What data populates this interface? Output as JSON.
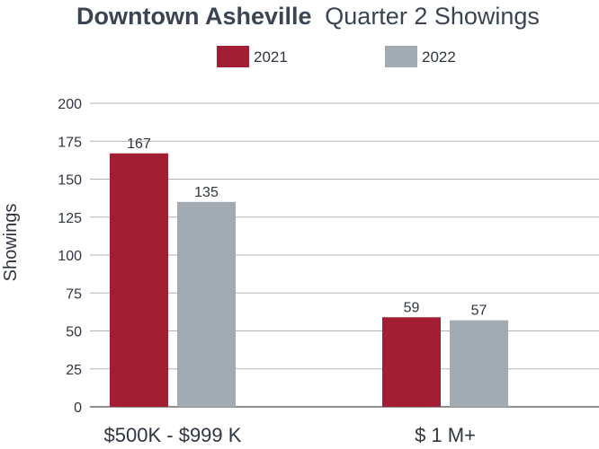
{
  "chart_data": {
    "type": "bar",
    "title_bold": "Downtown Asheville",
    "title_rest": "Quarter 2 Showings",
    "xlabel": "",
    "ylabel": "Showings",
    "ylim": [
      0,
      200
    ],
    "yticks": [
      0,
      25,
      50,
      75,
      100,
      125,
      150,
      175,
      200
    ],
    "categories": [
      "$500K - $999 K",
      "$ 1 M+"
    ],
    "series": [
      {
        "name": "2021",
        "color": "#a21f33",
        "values": [
          167,
          59
        ]
      },
      {
        "name": "2022",
        "color": "#a2abb1",
        "values": [
          135,
          57
        ]
      }
    ],
    "grid": true,
    "legend_position": "top-center"
  }
}
